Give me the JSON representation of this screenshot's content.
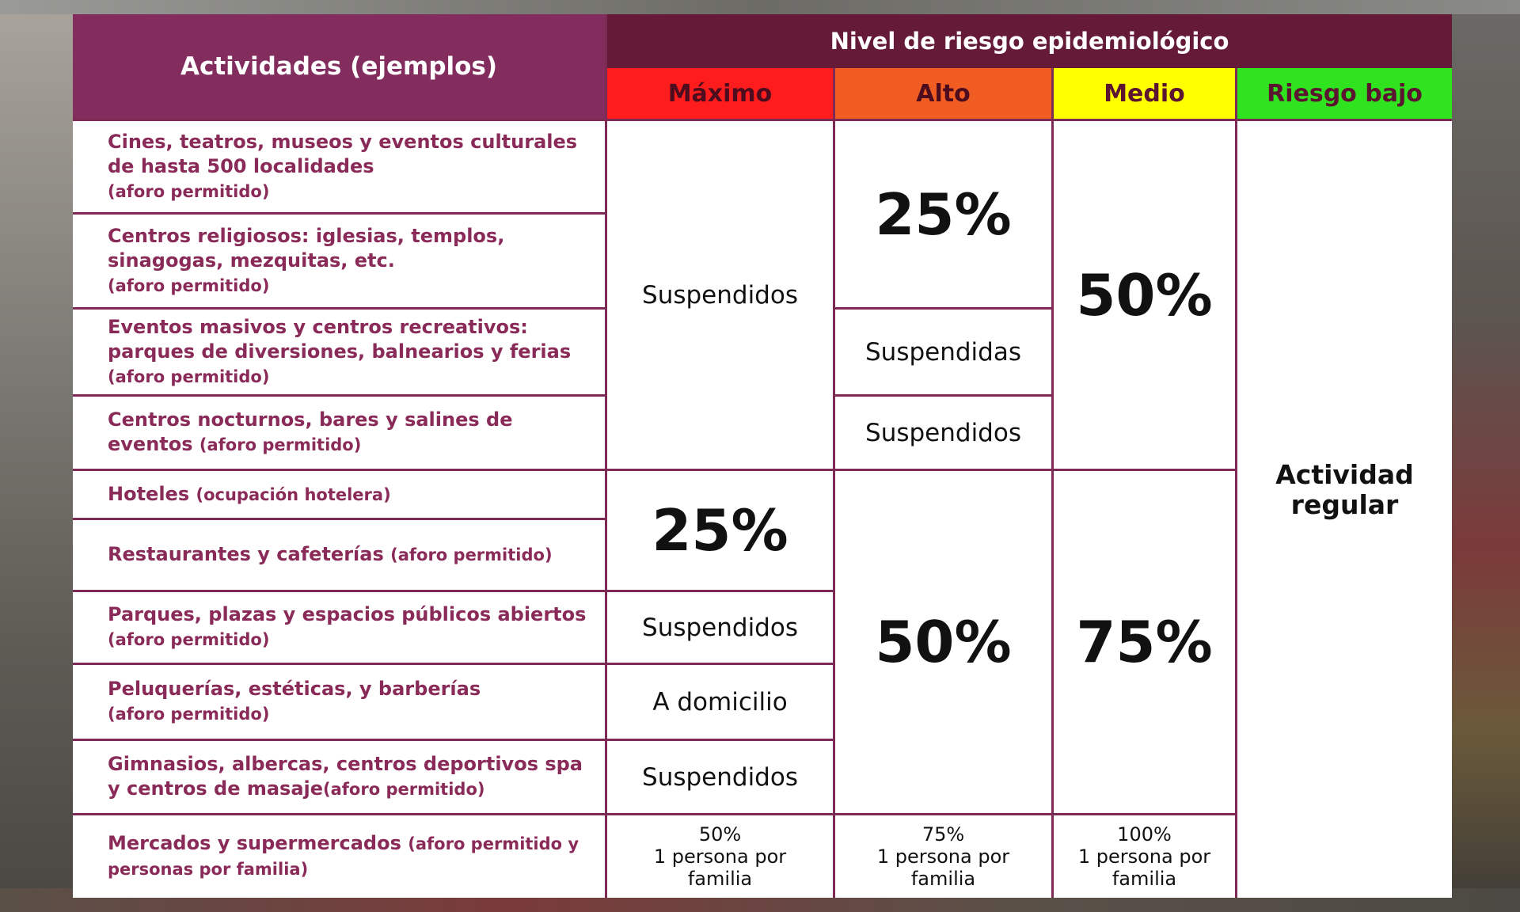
{
  "header": {
    "activities_title": "Actividades (ejemplos)",
    "risk_title": "Nivel de riesgo epidemiológico",
    "levels": [
      {
        "label": "Máximo",
        "color": "#ff1c1c"
      },
      {
        "label": "Alto",
        "color": "#f15c22"
      },
      {
        "label": "Medio",
        "color": "#ffff00"
      },
      {
        "label": "Riesgo bajo",
        "color": "#2fe31f"
      }
    ]
  },
  "activities": [
    {
      "main": "Cines, teatros, museos y eventos culturales de hasta 500 localidades",
      "note": "(aforo permitido)"
    },
    {
      "main": "Centros religiosos: iglesias, templos, sinagogas, mezquitas, etc.",
      "note": "(aforo permitido)"
    },
    {
      "main": "Eventos masivos y centros recreativos: parques de diversiones, balnearios y ferias",
      "note": "(aforo permitido)"
    },
    {
      "main": "Centros nocturnos, bares y salines de eventos",
      "note": "(aforo permitido)"
    },
    {
      "main": "Hoteles",
      "note": "(ocupación hotelera)"
    },
    {
      "main": "Restaurantes y cafeterías",
      "note": "(aforo permitido)"
    },
    {
      "main": "Parques, plazas y espacios públicos abiertos",
      "note": "(aforo permitido)"
    },
    {
      "main": "Peluquerías, estéticas, y barberías",
      "note": "(aforo permitido)"
    },
    {
      "main": "Gimnasios, albercas, centros deportivos spa y centros de masaje",
      "note": "(aforo permitido)"
    },
    {
      "main": "Mercados y supermercados",
      "note": "(aforo permitido y personas por familia)"
    }
  ],
  "values": {
    "maximo": {
      "culture_to_nightlife": "Suspendidos",
      "hotels_restaurants": "25%",
      "parks": "Suspendidos",
      "salons": "A domicilio",
      "gyms": "Suspendidos",
      "markets": "50%\n1 persona por\nfamilia"
    },
    "alto": {
      "culture_religious": "25%",
      "mass_events": "Suspendidas",
      "nightlife": "Suspendidos",
      "hotels_to_gyms": "50%",
      "markets": "75%\n1 persona por\nfamilia"
    },
    "medio": {
      "culture_to_nightlife": "50%",
      "hotels_to_gyms": "75%",
      "markets": "100%\n1 persona por\nfamilia"
    },
    "bajo": {
      "all": "Actividad\nregular"
    }
  }
}
